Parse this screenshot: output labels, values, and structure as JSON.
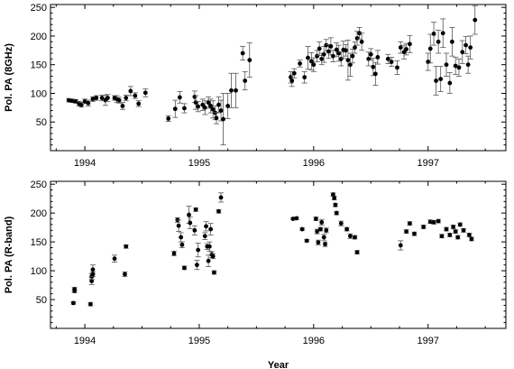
{
  "chart_data": [
    {
      "type": "scatter",
      "title": "",
      "xlabel": "",
      "ylabel": "Pol. PA (8GHz)",
      "xlim": [
        1993.7,
        1997.68
      ],
      "ylim": [
        0,
        255
      ],
      "xticks": [
        1994,
        1995,
        1996,
        1997
      ],
      "yticks": [
        50,
        100,
        150,
        200,
        250
      ],
      "grid": false,
      "error_bars": true,
      "points": [
        {
          "x": 1993.86,
          "y": 88,
          "err": 3
        },
        {
          "x": 1993.89,
          "y": 87,
          "err": 3
        },
        {
          "x": 1993.92,
          "y": 86,
          "err": 3
        },
        {
          "x": 1993.95,
          "y": 82,
          "err": 4
        },
        {
          "x": 1993.97,
          "y": 80,
          "err": 4
        },
        {
          "x": 1994.0,
          "y": 86,
          "err": 4
        },
        {
          "x": 1994.03,
          "y": 83,
          "err": 5
        },
        {
          "x": 1994.07,
          "y": 90,
          "err": 4
        },
        {
          "x": 1994.1,
          "y": 92,
          "err": 4
        },
        {
          "x": 1994.15,
          "y": 92,
          "err": 5
        },
        {
          "x": 1994.18,
          "y": 88,
          "err": 9
        },
        {
          "x": 1994.2,
          "y": 92,
          "err": 6
        },
        {
          "x": 1994.26,
          "y": 92,
          "err": 4
        },
        {
          "x": 1994.28,
          "y": 90,
          "err": 6
        },
        {
          "x": 1994.3,
          "y": 88,
          "err": 5
        },
        {
          "x": 1994.33,
          "y": 78,
          "err": 6
        },
        {
          "x": 1994.36,
          "y": 92,
          "err": 5
        },
        {
          "x": 1994.4,
          "y": 104,
          "err": 8
        },
        {
          "x": 1994.44,
          "y": 96,
          "err": 5
        },
        {
          "x": 1994.47,
          "y": 82,
          "err": 5
        },
        {
          "x": 1994.53,
          "y": 101,
          "err": 7
        },
        {
          "x": 1994.73,
          "y": 56,
          "err": 5
        },
        {
          "x": 1994.79,
          "y": 73,
          "err": 15
        },
        {
          "x": 1994.83,
          "y": 93,
          "err": 10
        },
        {
          "x": 1994.87,
          "y": 74,
          "err": 8
        },
        {
          "x": 1994.96,
          "y": 94,
          "err": 10
        },
        {
          "x": 1994.97,
          "y": 84,
          "err": 12
        },
        {
          "x": 1994.99,
          "y": 77,
          "err": 9
        },
        {
          "x": 1995.03,
          "y": 80,
          "err": 10
        },
        {
          "x": 1995.05,
          "y": 75,
          "err": 12
        },
        {
          "x": 1995.08,
          "y": 84,
          "err": 10
        },
        {
          "x": 1995.1,
          "y": 78,
          "err": 12
        },
        {
          "x": 1995.12,
          "y": 72,
          "err": 15
        },
        {
          "x": 1995.14,
          "y": 66,
          "err": 12
        },
        {
          "x": 1995.15,
          "y": 57,
          "err": 10
        },
        {
          "x": 1995.17,
          "y": 80,
          "err": 14
        },
        {
          "x": 1995.19,
          "y": 70,
          "err": 18
        },
        {
          "x": 1995.21,
          "y": 55,
          "err": 45
        },
        {
          "x": 1995.25,
          "y": 78,
          "err": 22
        },
        {
          "x": 1995.28,
          "y": 105,
          "err": 30
        },
        {
          "x": 1995.32,
          "y": 105,
          "err": 30
        },
        {
          "x": 1995.38,
          "y": 170,
          "err": 12
        },
        {
          "x": 1995.4,
          "y": 122,
          "err": 16
        },
        {
          "x": 1995.44,
          "y": 158,
          "err": 30
        },
        {
          "x": 1995.8,
          "y": 128,
          "err": 10
        },
        {
          "x": 1995.81,
          "y": 122,
          "err": 10
        },
        {
          "x": 1995.83,
          "y": 135,
          "err": 8
        },
        {
          "x": 1995.88,
          "y": 152,
          "err": 6
        },
        {
          "x": 1995.92,
          "y": 128,
          "err": 10
        },
        {
          "x": 1995.95,
          "y": 162,
          "err": 20
        },
        {
          "x": 1995.98,
          "y": 156,
          "err": 15
        },
        {
          "x": 1996.0,
          "y": 150,
          "err": 12
        },
        {
          "x": 1996.03,
          "y": 165,
          "err": 10
        },
        {
          "x": 1996.05,
          "y": 178,
          "err": 12
        },
        {
          "x": 1996.07,
          "y": 160,
          "err": 10
        },
        {
          "x": 1996.09,
          "y": 168,
          "err": 14
        },
        {
          "x": 1996.11,
          "y": 184,
          "err": 10
        },
        {
          "x": 1996.13,
          "y": 173,
          "err": 12
        },
        {
          "x": 1996.15,
          "y": 182,
          "err": 15
        },
        {
          "x": 1996.17,
          "y": 165,
          "err": 10
        },
        {
          "x": 1996.2,
          "y": 176,
          "err": 12
        },
        {
          "x": 1996.22,
          "y": 170,
          "err": 14
        },
        {
          "x": 1996.24,
          "y": 160,
          "err": 12
        },
        {
          "x": 1996.26,
          "y": 176,
          "err": 15
        },
        {
          "x": 1996.28,
          "y": 175,
          "err": 10
        },
        {
          "x": 1996.3,
          "y": 158,
          "err": 35
        },
        {
          "x": 1996.32,
          "y": 150,
          "err": 20
        },
        {
          "x": 1996.34,
          "y": 165,
          "err": 12
        },
        {
          "x": 1996.36,
          "y": 180,
          "err": 10
        },
        {
          "x": 1996.38,
          "y": 196,
          "err": 12
        },
        {
          "x": 1996.4,
          "y": 205,
          "err": 10
        },
        {
          "x": 1996.42,
          "y": 190,
          "err": 15
        },
        {
          "x": 1996.48,
          "y": 160,
          "err": 12
        },
        {
          "x": 1996.5,
          "y": 168,
          "err": 10
        },
        {
          "x": 1996.52,
          "y": 146,
          "err": 15
        },
        {
          "x": 1996.54,
          "y": 134,
          "err": 20
        },
        {
          "x": 1996.56,
          "y": 163,
          "err": 12
        },
        {
          "x": 1996.65,
          "y": 160,
          "err": 8
        },
        {
          "x": 1996.68,
          "y": 155,
          "err": 8
        },
        {
          "x": 1996.73,
          "y": 145,
          "err": 12
        },
        {
          "x": 1996.76,
          "y": 180,
          "err": 10
        },
        {
          "x": 1996.79,
          "y": 172,
          "err": 12
        },
        {
          "x": 1996.81,
          "y": 177,
          "err": 10
        },
        {
          "x": 1996.84,
          "y": 186,
          "err": 15
        },
        {
          "x": 1997.0,
          "y": 155,
          "err": 15
        },
        {
          "x": 1997.02,
          "y": 178,
          "err": 25
        },
        {
          "x": 1997.05,
          "y": 204,
          "err": 20
        },
        {
          "x": 1997.07,
          "y": 122,
          "err": 25
        },
        {
          "x": 1997.09,
          "y": 190,
          "err": 20
        },
        {
          "x": 1997.11,
          "y": 125,
          "err": 22
        },
        {
          "x": 1997.13,
          "y": 205,
          "err": 25
        },
        {
          "x": 1997.16,
          "y": 150,
          "err": 20
        },
        {
          "x": 1997.19,
          "y": 118,
          "err": 18
        },
        {
          "x": 1997.21,
          "y": 190,
          "err": 25
        },
        {
          "x": 1997.24,
          "y": 148,
          "err": 15
        },
        {
          "x": 1997.27,
          "y": 145,
          "err": 15
        },
        {
          "x": 1997.3,
          "y": 172,
          "err": 20
        },
        {
          "x": 1997.33,
          "y": 184,
          "err": 15
        },
        {
          "x": 1997.35,
          "y": 150,
          "err": 15
        },
        {
          "x": 1997.37,
          "y": 180,
          "err": 20
        },
        {
          "x": 1997.41,
          "y": 228,
          "err": 25
        }
      ]
    },
    {
      "type": "scatter",
      "title": "",
      "xlabel": "Year",
      "ylabel": "Pol. PA (R-band)",
      "xlim": [
        1993.7,
        1997.68
      ],
      "ylim": [
        0,
        255
      ],
      "xticks": [
        1994,
        1995,
        1996,
        1997
      ],
      "yticks": [
        50,
        100,
        150,
        200,
        250
      ],
      "grid": false,
      "error_bars": true,
      "points": [
        {
          "x": 1993.9,
          "y": 44,
          "err": 2
        },
        {
          "x": 1993.91,
          "y": 65,
          "err": 3
        },
        {
          "x": 1993.91,
          "y": 68,
          "err": 3
        },
        {
          "x": 1994.05,
          "y": 42,
          "err": 3
        },
        {
          "x": 1994.06,
          "y": 82,
          "err": 6
        },
        {
          "x": 1994.06,
          "y": 90,
          "err": 5
        },
        {
          "x": 1994.07,
          "y": 102,
          "err": 8
        },
        {
          "x": 1994.07,
          "y": 94,
          "err": 4
        },
        {
          "x": 1994.26,
          "y": 121,
          "err": 6
        },
        {
          "x": 1994.35,
          "y": 94,
          "err": 4
        },
        {
          "x": 1994.36,
          "y": 142,
          "err": 3
        },
        {
          "x": 1994.78,
          "y": 130,
          "err": 4
        },
        {
          "x": 1994.81,
          "y": 188,
          "err": 4
        },
        {
          "x": 1994.82,
          "y": 178,
          "err": 10
        },
        {
          "x": 1994.84,
          "y": 158,
          "err": 8
        },
        {
          "x": 1994.85,
          "y": 145,
          "err": 5
        },
        {
          "x": 1994.87,
          "y": 105,
          "err": 3
        },
        {
          "x": 1994.91,
          "y": 197,
          "err": 15
        },
        {
          "x": 1994.92,
          "y": 183,
          "err": 10
        },
        {
          "x": 1994.96,
          "y": 170,
          "err": 8
        },
        {
          "x": 1994.97,
          "y": 206,
          "err": 3
        },
        {
          "x": 1994.98,
          "y": 110,
          "err": 8
        },
        {
          "x": 1994.99,
          "y": 136,
          "err": 12
        },
        {
          "x": 1995.05,
          "y": 160,
          "err": 6
        },
        {
          "x": 1995.06,
          "y": 177,
          "err": 8
        },
        {
          "x": 1995.07,
          "y": 142,
          "err": 5
        },
        {
          "x": 1995.08,
          "y": 117,
          "err": 10
        },
        {
          "x": 1995.09,
          "y": 142,
          "err": 8
        },
        {
          "x": 1995.1,
          "y": 172,
          "err": 10
        },
        {
          "x": 1995.11,
          "y": 128,
          "err": 5
        },
        {
          "x": 1995.12,
          "y": 125,
          "err": 4
        },
        {
          "x": 1995.13,
          "y": 97,
          "err": 3
        },
        {
          "x": 1995.17,
          "y": 203,
          "err": 3
        },
        {
          "x": 1995.19,
          "y": 227,
          "err": 8
        },
        {
          "x": 1995.82,
          "y": 190,
          "err": 2
        },
        {
          "x": 1995.85,
          "y": 191,
          "err": 2
        },
        {
          "x": 1995.9,
          "y": 172,
          "err": 2
        },
        {
          "x": 1995.94,
          "y": 152,
          "err": 2
        },
        {
          "x": 1996.02,
          "y": 190,
          "err": 3
        },
        {
          "x": 1996.03,
          "y": 168,
          "err": 4
        },
        {
          "x": 1996.04,
          "y": 149,
          "err": 4
        },
        {
          "x": 1996.06,
          "y": 172,
          "err": 3
        },
        {
          "x": 1996.07,
          "y": 184,
          "err": 5
        },
        {
          "x": 1996.09,
          "y": 158,
          "err": 5
        },
        {
          "x": 1996.1,
          "y": 146,
          "err": 4
        },
        {
          "x": 1996.11,
          "y": 170,
          "err": 4
        },
        {
          "x": 1996.17,
          "y": 232,
          "err": 3
        },
        {
          "x": 1996.18,
          "y": 226,
          "err": 3
        },
        {
          "x": 1996.19,
          "y": 214,
          "err": 3
        },
        {
          "x": 1996.2,
          "y": 200,
          "err": 3
        },
        {
          "x": 1996.24,
          "y": 182,
          "err": 4
        },
        {
          "x": 1996.29,
          "y": 172,
          "err": 3
        },
        {
          "x": 1996.32,
          "y": 160,
          "err": 4
        },
        {
          "x": 1996.36,
          "y": 158,
          "err": 3
        },
        {
          "x": 1996.38,
          "y": 132,
          "err": 3
        },
        {
          "x": 1996.76,
          "y": 144,
          "err": 8
        },
        {
          "x": 1996.81,
          "y": 168,
          "err": 3
        },
        {
          "x": 1996.84,
          "y": 182,
          "err": 3
        },
        {
          "x": 1996.88,
          "y": 164,
          "err": 3
        },
        {
          "x": 1996.96,
          "y": 176,
          "err": 3
        },
        {
          "x": 1997.02,
          "y": 185,
          "err": 3
        },
        {
          "x": 1997.05,
          "y": 184,
          "err": 3
        },
        {
          "x": 1997.09,
          "y": 186,
          "err": 3
        },
        {
          "x": 1997.12,
          "y": 160,
          "err": 3
        },
        {
          "x": 1997.16,
          "y": 172,
          "err": 3
        },
        {
          "x": 1997.19,
          "y": 162,
          "err": 3
        },
        {
          "x": 1997.22,
          "y": 176,
          "err": 3
        },
        {
          "x": 1997.24,
          "y": 168,
          "err": 3
        },
        {
          "x": 1997.26,
          "y": 158,
          "err": 3
        },
        {
          "x": 1997.28,
          "y": 180,
          "err": 3
        },
        {
          "x": 1997.31,
          "y": 170,
          "err": 3
        },
        {
          "x": 1997.36,
          "y": 162,
          "err": 3
        },
        {
          "x": 1997.38,
          "y": 155,
          "err": 3
        }
      ]
    }
  ]
}
